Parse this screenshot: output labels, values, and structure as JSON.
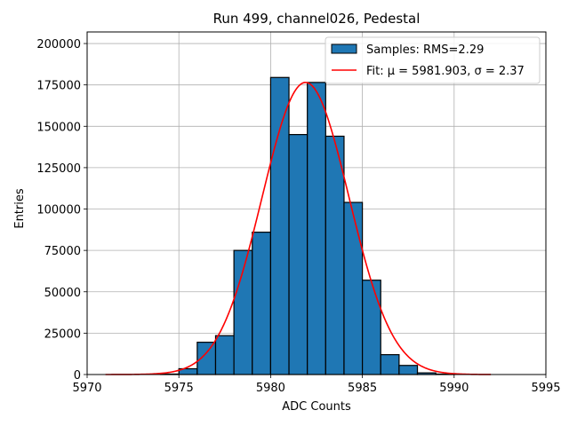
{
  "chart_data": {
    "type": "bar",
    "title": "Run 499, channel026, Pedestal",
    "xlabel": "ADC Counts",
    "ylabel": "Entries",
    "xlim": [
      5970,
      5995
    ],
    "ylim": [
      0,
      207000
    ],
    "xticks": [
      "5970",
      "5975",
      "5980",
      "5985",
      "5990",
      "5995"
    ],
    "yticks": [
      "0",
      "25000",
      "50000",
      "75000",
      "100000",
      "125000",
      "150000",
      "175000",
      "200000"
    ],
    "grid": true,
    "legend_position": "top-right",
    "bar_color": "#1f77b4",
    "fit_color": "#ff0000",
    "bins": [
      {
        "left": 5974,
        "right": 5975,
        "value": 300
      },
      {
        "left": 5975,
        "right": 5976,
        "value": 3500
      },
      {
        "left": 5976,
        "right": 5977,
        "value": 19500
      },
      {
        "left": 5977,
        "right": 5978,
        "value": 23500
      },
      {
        "left": 5978,
        "right": 5979,
        "value": 75000
      },
      {
        "left": 5979,
        "right": 5980,
        "value": 86000
      },
      {
        "left": 5980,
        "right": 5981,
        "value": 179500
      },
      {
        "left": 5981,
        "right": 5982,
        "value": 145000
      },
      {
        "left": 5982,
        "right": 5983,
        "value": 176500
      },
      {
        "left": 5983,
        "right": 5984,
        "value": 144000
      },
      {
        "left": 5984,
        "right": 5985,
        "value": 104000
      },
      {
        "left": 5985,
        "right": 5986,
        "value": 57000
      },
      {
        "left": 5986,
        "right": 5987,
        "value": 12000
      },
      {
        "left": 5987,
        "right": 5988,
        "value": 5500
      },
      {
        "left": 5988,
        "right": 5989,
        "value": 1000
      },
      {
        "left": 5989,
        "right": 5990,
        "value": 300
      }
    ],
    "fit": {
      "mu": 5981.903,
      "sigma": 2.37,
      "amplitude": 176500,
      "x_range": [
        5971,
        5992
      ]
    },
    "legend": [
      {
        "label": "Samples: RMS=2.29",
        "kind": "bar"
      },
      {
        "label": "Fit: μ = 5981.903, σ = 2.37",
        "kind": "line"
      }
    ]
  }
}
